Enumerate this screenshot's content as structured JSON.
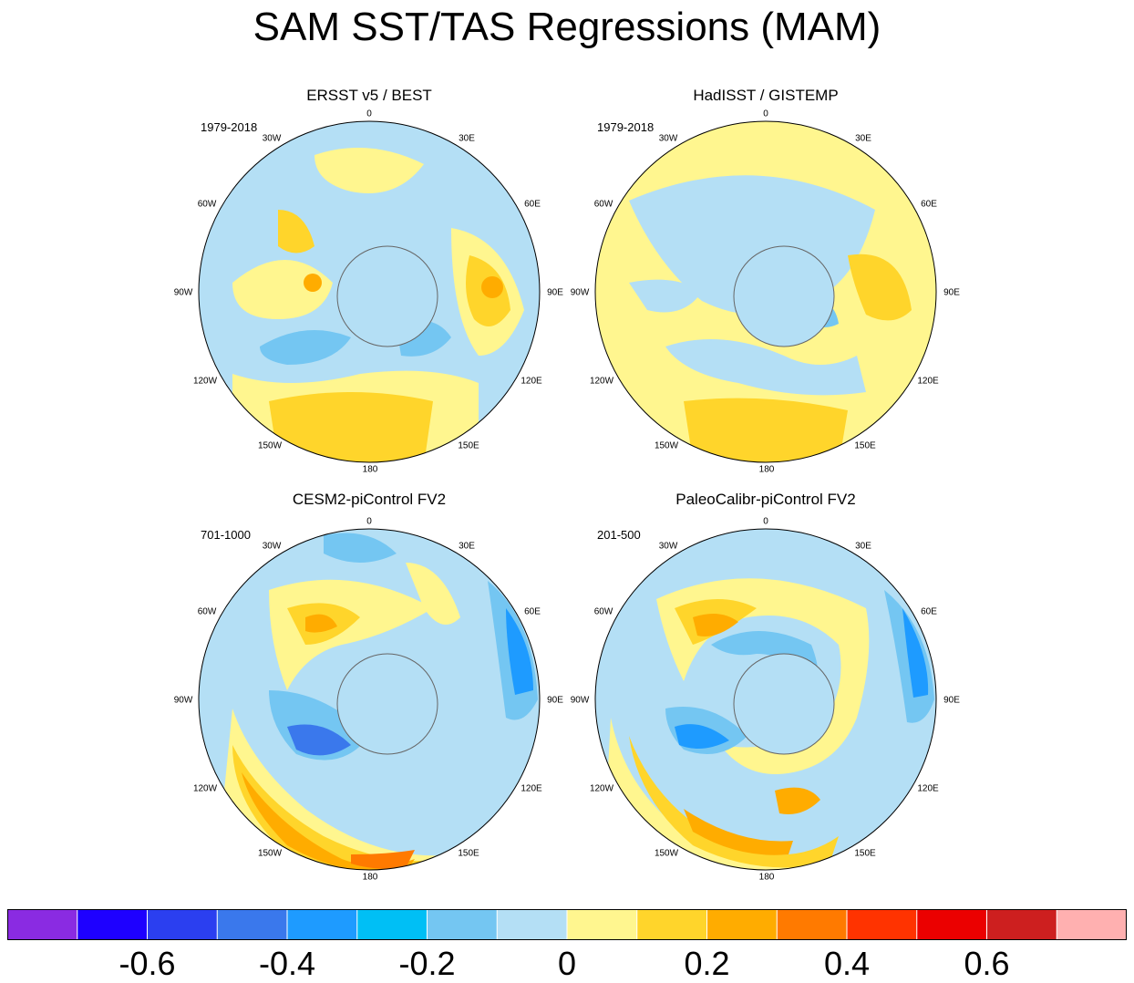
{
  "title": "SAM SST/TAS Regressions (MAM)",
  "chart_data": {
    "type": "heatmap",
    "title": "SAM SST/TAS Regressions (MAM)",
    "projection": "south-polar stereographic",
    "longitude_labels": [
      "0",
      "30E",
      "60E",
      "90E",
      "120E",
      "150E",
      "180",
      "150W",
      "120W",
      "90W",
      "60W",
      "30W"
    ],
    "panels": [
      {
        "title": "ERSST v5 / BEST",
        "period": "1979-2018"
      },
      {
        "title": "HadISST / GISTEMP",
        "period": "1979-2018"
      },
      {
        "title": "CESM2-piControl FV2",
        "period": "701-1000"
      },
      {
        "title": "PaleoCalibr-piControl FV2",
        "period": "201-500"
      }
    ],
    "colorbar": {
      "levels": [
        -0.7,
        -0.6,
        -0.5,
        -0.4,
        -0.3,
        -0.2,
        -0.1,
        0,
        0.1,
        0.2,
        0.3,
        0.4,
        0.5,
        0.6,
        0.7
      ],
      "colors": [
        "#8a2be2",
        "#1e00ff",
        "#2b3ff0",
        "#3a78ec",
        "#1e9bff",
        "#00bff5",
        "#74c6f2",
        "#b4dff5",
        "#fff68f",
        "#ffd52b",
        "#ffac00",
        "#ff7a00",
        "#ff3300",
        "#eb0000",
        "#cd1f1f",
        "#ffb0b0"
      ],
      "tick_labels": [
        "-0.6",
        "-0.4",
        "-0.2",
        "0",
        "0.2",
        "0.4",
        "0.6"
      ],
      "tick_values": [
        -0.6,
        -0.4,
        -0.2,
        0,
        0.2,
        0.4,
        0.6
      ]
    }
  }
}
